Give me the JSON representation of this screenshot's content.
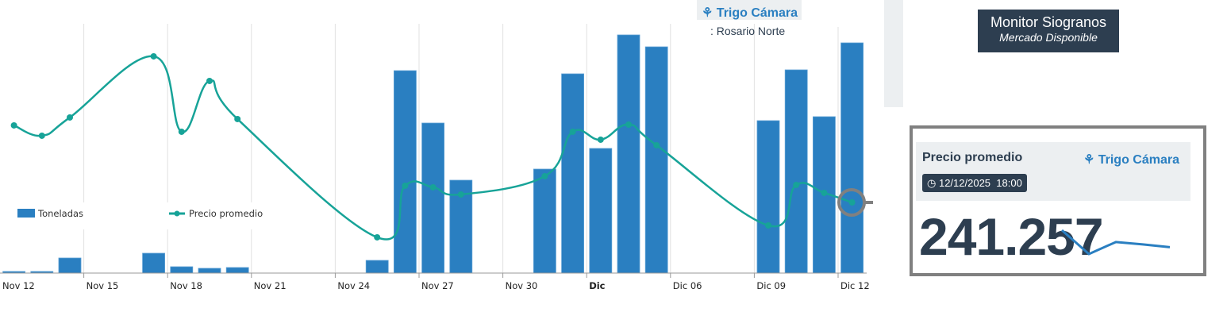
{
  "header": {
    "product": "Trigo Cámara",
    "product_icon": "wheat-icon",
    "location": ": Rosario Norte"
  },
  "monitor": {
    "title": "Monitor Siogranos",
    "subtitle": "Mercado Disponible"
  },
  "card": {
    "label": "Precio promedio",
    "product": "Trigo Cámara",
    "date": "12/12/2025",
    "time": "18:00",
    "value": "241.257"
  },
  "colors": {
    "bars": "#2a7fc1",
    "line": "#17a398",
    "dark": "#2d3e50"
  },
  "chart_data": {
    "type": "bar+line",
    "legend": [
      "Toneladas",
      "Precio promedio"
    ],
    "legend_placement": "bottom-left",
    "x_ticks": [
      "Nov 12",
      "Nov 15",
      "Nov 18",
      "Nov 21",
      "Nov 24",
      "Nov 27",
      "Nov 30",
      "Dic",
      "Dic 06",
      "Dic 09",
      "Dic 12"
    ],
    "grid": true,
    "series": [
      {
        "name": "Toneladas",
        "kind": "bar",
        "day_index": [
          0,
          1,
          2,
          5,
          6,
          7,
          8,
          13,
          14,
          15,
          16,
          19,
          20,
          21,
          22,
          23,
          27,
          28,
          29,
          30
        ],
        "values": [
          20,
          20,
          190,
          250,
          80,
          60,
          70,
          160,
          2550,
          1890,
          1170,
          1310,
          2510,
          1570,
          3000,
          2850,
          1920,
          2560,
          1970,
          2900
        ]
      },
      {
        "name": "Precio promedio",
        "kind": "line",
        "day_index": [
          0,
          1,
          2,
          5,
          6,
          7,
          8,
          13,
          14,
          15,
          16,
          19,
          20,
          21,
          22,
          23,
          27,
          28,
          29,
          30
        ],
        "values": [
          246.11,
          245.46,
          246.61,
          250.46,
          245.71,
          248.91,
          246.51,
          239.06,
          242.31,
          242.21,
          241.76,
          242.91,
          245.71,
          245.21,
          246.16,
          244.86,
          239.81,
          242.36,
          241.86,
          241.257
        ]
      }
    ]
  }
}
